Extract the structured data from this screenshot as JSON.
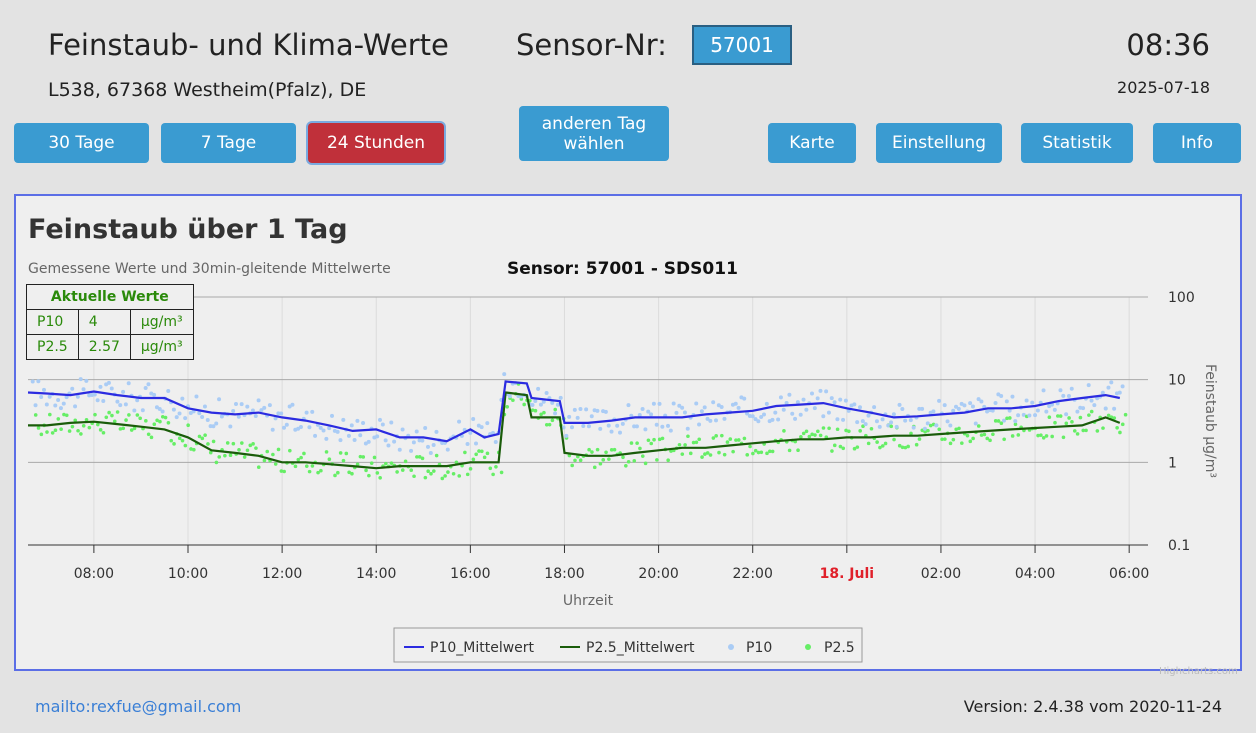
{
  "header": {
    "title": "Feinstaub- und Klima-Werte",
    "sensor_label": "Sensor-Nr:",
    "sensor_value": "57001",
    "time": "08:36",
    "location": "L538, 67368 Westheim(Pfalz), DE",
    "date": "2025-07-18"
  },
  "nav": {
    "btn_30": "30 Tage",
    "btn_7": "7 Tage",
    "btn_24": "24 Stunden",
    "btn_day_line1": "anderen Tag",
    "btn_day_line2": "wählen",
    "btn_map": "Karte",
    "btn_settings": "Einstellung",
    "btn_stats": "Statistik",
    "btn_info": "Info"
  },
  "current_values": {
    "title": "Aktuelle Werte",
    "rows": [
      {
        "label": "P10",
        "value": "4",
        "unit": "µg/m³"
      },
      {
        "label": "P2.5",
        "value": "2.57",
        "unit": "µg/m³"
      }
    ]
  },
  "chart_data": {
    "type": "line",
    "title": "Feinstaub über 1 Tag",
    "subtitle": "Gemessene Werte und 30min-gleitende Mittelwerte",
    "sensor_caption": "Sensor: 57001 - SDS011",
    "xlabel": "Uhrzeit",
    "ylabel": "Feinstaub µg/m³",
    "y_scale": "log",
    "ylim": [
      0.1,
      100
    ],
    "y_ticks": [
      "100",
      "10",
      "1",
      "0.1"
    ],
    "x_range_hours": [
      6.6,
      30.4
    ],
    "x_ticks": [
      {
        "h": 8,
        "label": "08:00"
      },
      {
        "h": 10,
        "label": "10:00"
      },
      {
        "h": 12,
        "label": "12:00"
      },
      {
        "h": 14,
        "label": "14:00"
      },
      {
        "h": 16,
        "label": "16:00"
      },
      {
        "h": 18,
        "label": "18:00"
      },
      {
        "h": 20,
        "label": "20:00"
      },
      {
        "h": 22,
        "label": "22:00"
      },
      {
        "h": 24,
        "label": "18. Juli",
        "highlight": true
      },
      {
        "h": 26,
        "label": "02:00"
      },
      {
        "h": 28,
        "label": "04:00"
      },
      {
        "h": 30,
        "label": "06:00"
      }
    ],
    "highlight_color": "#e0202a",
    "legend_position": "bottom-center",
    "series": [
      {
        "name": "P10_Mittelwert",
        "kind": "line",
        "color": "#2b2be0",
        "x": [
          6.6,
          7.0,
          7.5,
          8.0,
          8.5,
          9.0,
          9.5,
          10.0,
          10.5,
          11.0,
          11.5,
          12.0,
          12.5,
          13.0,
          13.5,
          14.0,
          14.5,
          15.0,
          15.5,
          16.0,
          16.3,
          16.6,
          16.75,
          17.2,
          17.3,
          17.9,
          18.0,
          18.5,
          19.0,
          19.5,
          20.0,
          20.5,
          21.0,
          21.5,
          22.0,
          22.5,
          23.0,
          23.5,
          24.0,
          24.5,
          25.0,
          25.5,
          26.0,
          26.5,
          27.0,
          27.5,
          28.0,
          28.5,
          29.0,
          29.5,
          29.8
        ],
        "y": [
          7.0,
          6.8,
          6.5,
          7.2,
          6.5,
          6.0,
          6.0,
          4.5,
          4.0,
          3.8,
          4.0,
          3.5,
          3.2,
          2.8,
          2.4,
          2.5,
          2.0,
          2.0,
          1.8,
          2.5,
          2.0,
          2.2,
          9.5,
          9.0,
          6.0,
          5.5,
          3.0,
          3.0,
          3.2,
          3.5,
          3.5,
          3.5,
          3.8,
          4.0,
          4.2,
          4.8,
          5.0,
          5.2,
          4.5,
          4.0,
          3.5,
          3.6,
          3.8,
          4.0,
          4.5,
          4.5,
          4.8,
          5.5,
          6.0,
          6.5,
          6.0
        ]
      },
      {
        "name": "P2.5_Mittelwert",
        "kind": "line",
        "color": "#1a5c0a",
        "x": [
          6.6,
          7.0,
          7.5,
          8.0,
          8.5,
          9.0,
          9.5,
          10.0,
          10.5,
          11.0,
          11.5,
          12.0,
          12.5,
          13.0,
          13.5,
          14.0,
          14.5,
          15.0,
          15.5,
          16.0,
          16.3,
          16.6,
          16.75,
          17.2,
          17.3,
          17.9,
          18.0,
          18.5,
          19.0,
          19.5,
          20.0,
          20.5,
          21.0,
          21.5,
          22.0,
          22.5,
          23.0,
          23.5,
          24.0,
          24.5,
          25.0,
          25.5,
          26.0,
          26.5,
          27.0,
          27.5,
          28.0,
          28.5,
          29.0,
          29.5,
          29.8
        ],
        "y": [
          2.8,
          2.8,
          3.0,
          3.1,
          2.9,
          2.7,
          2.5,
          2.0,
          1.4,
          1.3,
          1.2,
          1.0,
          1.0,
          0.95,
          0.9,
          0.85,
          0.9,
          0.9,
          0.9,
          1.0,
          1.0,
          1.0,
          7.0,
          6.5,
          3.5,
          3.5,
          1.3,
          1.2,
          1.2,
          1.3,
          1.4,
          1.5,
          1.5,
          1.6,
          1.7,
          1.8,
          1.9,
          1.9,
          2.0,
          2.0,
          2.1,
          2.1,
          2.2,
          2.3,
          2.4,
          2.5,
          2.6,
          2.7,
          2.8,
          3.5,
          3.0
        ]
      },
      {
        "name": "P10",
        "kind": "scatter",
        "color": "#aaccf5"
      },
      {
        "name": "P2.5",
        "kind": "scatter",
        "color": "#66ee66"
      }
    ]
  },
  "footer": {
    "mail": "mailto:rexfue@gmail.com",
    "version": "Version: 2.4.38 vom 2020-11-24",
    "credits": "Highcharts.com"
  }
}
